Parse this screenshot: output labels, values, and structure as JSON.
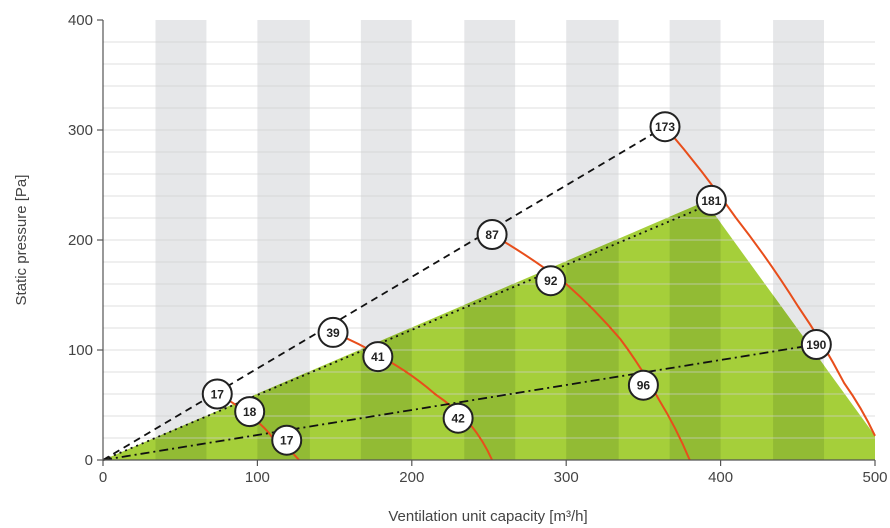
{
  "chart_data": {
    "type": "line",
    "title": "",
    "xlabel": "Ventilation unit capacity [m³/h]",
    "ylabel": "Static pressure [Pa]",
    "xlim": [
      0,
      500
    ],
    "ylim": [
      0,
      400
    ],
    "x_ticks": [
      "0",
      "100",
      "200",
      "300",
      "400",
      "500"
    ],
    "y_ticks": [
      "0",
      "100",
      "200",
      "300",
      "400"
    ],
    "x_tick_values": [
      0,
      100,
      200,
      300,
      400,
      500
    ],
    "y_tick_values": [
      0,
      100,
      200,
      300,
      400
    ],
    "background_stripe_edges": [
      0,
      34,
      67,
      100,
      134,
      167,
      200,
      234,
      267,
      300,
      334,
      367,
      400,
      434,
      467,
      500
    ],
    "operating_area": [
      [
        0,
        0
      ],
      [
        390,
        235
      ],
      [
        500,
        22
      ],
      [
        500,
        0
      ]
    ],
    "system_curves": [
      {
        "style": "dashed",
        "points": [
          [
            0,
            0
          ],
          [
            364,
            303
          ]
        ]
      },
      {
        "style": "dotted",
        "points": [
          [
            0,
            0
          ],
          [
            394,
            233
          ]
        ]
      },
      {
        "style": "dashdot",
        "points": [
          [
            0,
            0
          ],
          [
            462,
            105
          ]
        ]
      }
    ],
    "fan_curves": [
      {
        "points": [
          [
            74,
            60
          ],
          [
            95,
            40
          ],
          [
            110,
            20
          ],
          [
            127,
            0
          ]
        ]
      },
      {
        "points": [
          [
            149,
            116
          ],
          [
            185,
            90
          ],
          [
            215,
            60
          ],
          [
            238,
            32
          ],
          [
            252,
            0
          ]
        ]
      },
      {
        "points": [
          [
            252,
            205
          ],
          [
            300,
            160
          ],
          [
            335,
            110
          ],
          [
            360,
            55
          ],
          [
            380,
            0
          ]
        ]
      },
      {
        "points": [
          [
            364,
            303
          ],
          [
            410,
            220
          ],
          [
            450,
            140
          ],
          [
            480,
            70
          ],
          [
            500,
            22
          ]
        ]
      }
    ],
    "markers": [
      {
        "label": "173",
        "x": 364,
        "y": 303
      },
      {
        "label": "181",
        "x": 394,
        "y": 236
      },
      {
        "label": "87",
        "x": 252,
        "y": 205
      },
      {
        "label": "92",
        "x": 290,
        "y": 163
      },
      {
        "label": "39",
        "x": 149,
        "y": 116
      },
      {
        "label": "41",
        "x": 178,
        "y": 94
      },
      {
        "label": "190",
        "x": 462,
        "y": 105
      },
      {
        "label": "96",
        "x": 350,
        "y": 68
      },
      {
        "label": "42",
        "x": 230,
        "y": 38
      },
      {
        "label": "17",
        "x": 74,
        "y": 60
      },
      {
        "label": "18",
        "x": 95,
        "y": 44
      },
      {
        "label": "17",
        "x": 119,
        "y": 18
      }
    ],
    "grid": true,
    "legend": "none",
    "colors": {
      "stripe_gray": "#e6e7e9",
      "stripe_white": "#ffffff",
      "gridline": "#cfcfcf",
      "area_light": "#a5cf3a",
      "area_dark": "#92bb34",
      "fan_curve": "#e84e1b",
      "system_curve": "#111111",
      "axis": "#555555",
      "marker_fill": "#ffffff",
      "marker_stroke": "#222222"
    }
  }
}
